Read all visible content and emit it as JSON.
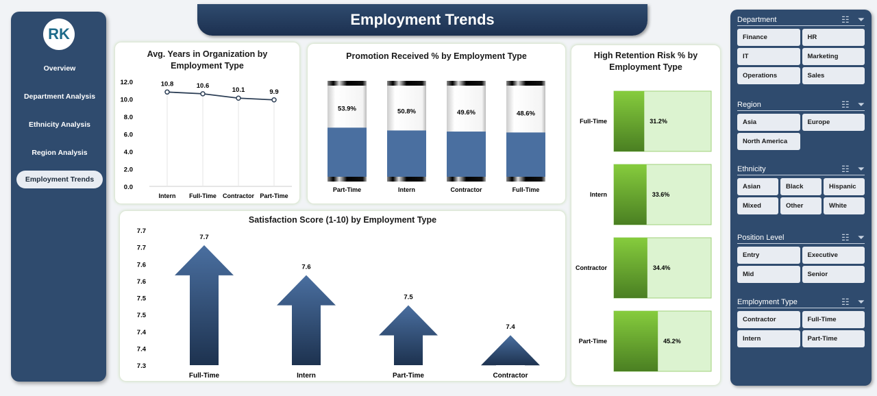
{
  "title": "Employment Trends",
  "logo_text": "RK",
  "nav": [
    {
      "label": "Overview"
    },
    {
      "label": "Department Analysis"
    },
    {
      "label": "Ethnicity Analysis"
    },
    {
      "label": "Region Analysis"
    },
    {
      "label": "Employment Trends",
      "active": true
    }
  ],
  "colors": {
    "sidebar": "#2f4b6e",
    "bar_blue": "#4a6fa0",
    "green_dark": "#5a9a2a",
    "green_light": "#dcf3d0",
    "arrow": "#2f4b6e"
  },
  "slicers": [
    {
      "title": "Department",
      "cols": 2,
      "items": [
        "Finance",
        "HR",
        "IT",
        "Marketing",
        "Operations",
        "Sales"
      ]
    },
    {
      "title": "Region",
      "cols": 2,
      "items": [
        "Asia",
        "Europe",
        "North America"
      ]
    },
    {
      "title": "Ethnicity",
      "cols": 3,
      "items": [
        "Asian",
        "Black",
        "Hispanic",
        "Mixed",
        "Other",
        "White"
      ]
    },
    {
      "title": "Position Level",
      "cols": 2,
      "items": [
        "Entry",
        "Executive",
        "Mid",
        "Senior"
      ]
    },
    {
      "title": "Employment Type",
      "cols": 2,
      "items": [
        "Contractor",
        "Full-Time",
        "Intern",
        "Part-Time"
      ]
    }
  ],
  "slicer_icons": [
    "multi-select-icon",
    "clear-filter-icon"
  ],
  "chart_data": [
    {
      "type": "line",
      "title": "Avg. Years in Organization by Employment Type",
      "categories": [
        "Intern",
        "Full-Time",
        "Contractor",
        "Part-Time"
      ],
      "values": [
        10.8,
        10.6,
        10.1,
        9.9
      ],
      "labels": [
        "10.8",
        "10.6",
        "10.1",
        "9.9"
      ],
      "ylim": [
        0,
        12
      ],
      "yticks": [
        "0.0",
        "2.0",
        "4.0",
        "6.0",
        "8.0",
        "10.0",
        "12.0"
      ],
      "grid": "vertical"
    },
    {
      "type": "bar",
      "title": "Promotion Received % by Employment Type",
      "categories": [
        "Part-Time",
        "Intern",
        "Contractor",
        "Full-Time"
      ],
      "values": [
        53.9,
        50.8,
        49.6,
        48.6
      ],
      "labels": [
        "53.9%",
        "50.8%",
        "49.6%",
        "48.6%"
      ],
      "ylim": [
        0,
        100
      ]
    },
    {
      "type": "bar",
      "orientation": "horizontal",
      "title": "High Retention Risk % by Employment Type",
      "categories": [
        "Full-Time",
        "Intern",
        "Contractor",
        "Part-Time"
      ],
      "values": [
        31.2,
        33.6,
        34.4,
        45.2
      ],
      "labels": [
        "31.2%",
        "33.6%",
        "34.4%",
        "45.2%"
      ],
      "xlim": [
        0,
        100
      ]
    },
    {
      "type": "bar",
      "title": "Satisfaction Score (1-10) by Employment Type",
      "categories": [
        "Full-Time",
        "Intern",
        "Part-Time",
        "Contractor"
      ],
      "values": [
        7.7,
        7.6,
        7.5,
        7.4
      ],
      "labels": [
        "7.7",
        "7.6",
        "7.5",
        "7.4"
      ],
      "ylim": [
        7.3,
        7.75
      ],
      "yticks": [
        "7.3",
        "7.4",
        "7.4",
        "7.5",
        "7.5",
        "7.6",
        "7.6",
        "7.7",
        "7.7"
      ]
    }
  ]
}
